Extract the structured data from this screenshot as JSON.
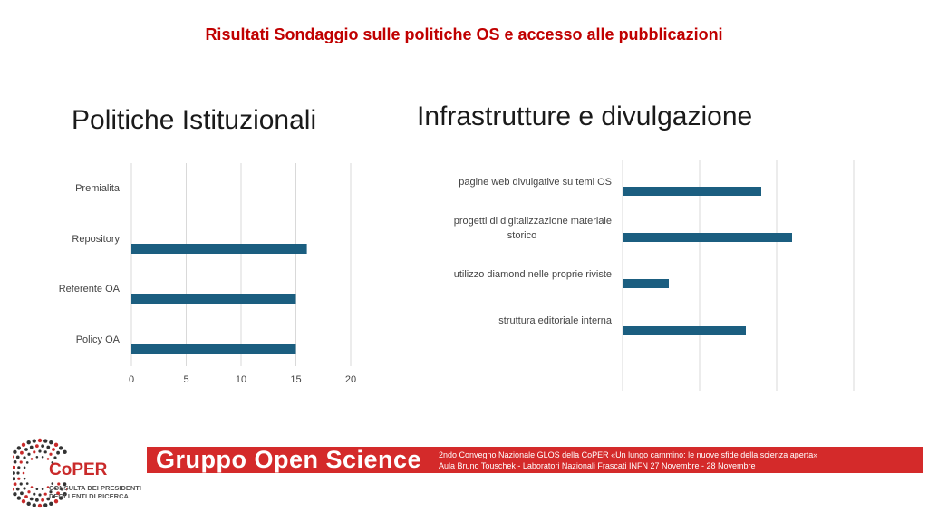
{
  "header": {
    "title": "Risultati Sondaggio sulle politiche OS e accesso alle pubblicazioni"
  },
  "colors": {
    "bar": "#1b5e80",
    "grid": "#d9d9d9",
    "accent": "#c00000",
    "banner": "#d42a2a"
  },
  "chart_data": [
    {
      "type": "bar",
      "orientation": "horizontal",
      "title": "Politiche Istituzionali",
      "categories": [
        "Premialita",
        "Repository",
        "Referente OA",
        "Policy OA"
      ],
      "values": [
        0,
        16,
        15,
        15
      ],
      "xlim": [
        0,
        20
      ],
      "xticks": [
        "0",
        "5",
        "10",
        "15",
        "20"
      ],
      "grid": true
    },
    {
      "type": "bar",
      "orientation": "horizontal",
      "title": "Infrastrutture e divulgazione",
      "categories": [
        "pagine web divulgative su temi OS",
        "progetti di digitalizzazione materiale storico",
        "utilizzo diamond nelle proprie riviste",
        "struttura editoriale interna"
      ],
      "values": [
        9,
        11,
        3,
        8
      ],
      "xlim": [
        0,
        15
      ],
      "xticks": [],
      "grid": true
    }
  ],
  "footer": {
    "banner_title": "Gruppo Open Science",
    "line1": "2ndo Convegno Nazionale GLOS della CoPER «Un lungo cammino: le nuove sfide della scienza aperta»",
    "line2": "Aula Bruno Touschek - Laboratori Nazionali Frascati INFN   27 Novembre - 28 Novembre",
    "logo_name": "CoPER",
    "logo_sub1": "CONSULTA DEI PRESIDENTI",
    "logo_sub2": "DEGLI ENTI DI RICERCA"
  }
}
